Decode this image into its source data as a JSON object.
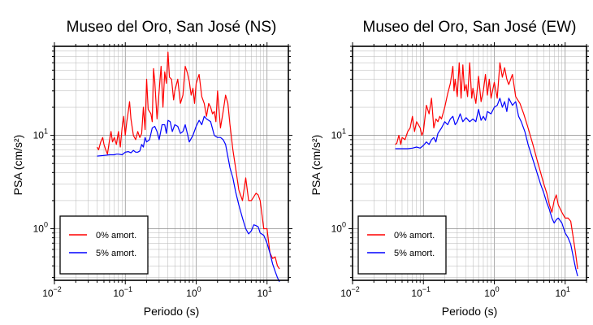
{
  "chart_data": [
    {
      "type": "line",
      "title": "Museo del Oro, San José (NS)",
      "xlabel": "Periodo (s)",
      "ylabel": "PSA (cm/s²)",
      "xscale": "log",
      "yscale": "log",
      "xlim": [
        0.01,
        20
      ],
      "ylim": [
        0.28,
        90
      ],
      "xticks": [
        {
          "base": "10",
          "exp": "−2",
          "value": 0.01
        },
        {
          "base": "10",
          "exp": "−1",
          "value": 0.1
        },
        {
          "base": "10",
          "exp": "0",
          "value": 1
        },
        {
          "base": "10",
          "exp": "1",
          "value": 10
        }
      ],
      "yticks": [
        {
          "base": "10",
          "exp": "0",
          "value": 1
        },
        {
          "base": "10",
          "exp": "1",
          "value": 10
        }
      ],
      "grid": true,
      "legend_position": "bottom-left",
      "series": [
        {
          "name": "0% amort.",
          "color": "#ff0000",
          "x": [
            0.04,
            0.042,
            0.045,
            0.048,
            0.05,
            0.053,
            0.056,
            0.06,
            0.063,
            0.066,
            0.07,
            0.075,
            0.08,
            0.085,
            0.09,
            0.095,
            0.1,
            0.105,
            0.11,
            0.115,
            0.12,
            0.13,
            0.14,
            0.15,
            0.16,
            0.17,
            0.18,
            0.19,
            0.2,
            0.21,
            0.22,
            0.23,
            0.24,
            0.25,
            0.26,
            0.28,
            0.3,
            0.32,
            0.34,
            0.36,
            0.38,
            0.4,
            0.42,
            0.45,
            0.48,
            0.5,
            0.55,
            0.6,
            0.65,
            0.7,
            0.75,
            0.8,
            0.85,
            0.9,
            0.95,
            1.0,
            1.1,
            1.2,
            1.3,
            1.4,
            1.5,
            1.6,
            1.7,
            1.8,
            1.9,
            2.0,
            2.2,
            2.4,
            2.6,
            2.8,
            3.0,
            3.3,
            3.6,
            4.0,
            4.5,
            5.0,
            5.5,
            6.0,
            6.5,
            7.0,
            7.5,
            8.0,
            9.0,
            10.0,
            11.0,
            12.0,
            13.0,
            14.0,
            15.0
          ],
          "y": [
            7.5,
            7.0,
            8.5,
            9.5,
            8.0,
            7.0,
            6.3,
            9.0,
            11.0,
            8.5,
            9.5,
            8.0,
            11.0,
            7.5,
            12.0,
            16.0,
            10.0,
            14.0,
            18.0,
            23.0,
            15.0,
            10.0,
            9.0,
            11.0,
            9.5,
            10.5,
            20.0,
            11.5,
            40.0,
            19.0,
            18.0,
            17.0,
            14.0,
            52.0,
            38.0,
            15.0,
            30.0,
            55.0,
            20.0,
            48.0,
            36.0,
            78.0,
            42.0,
            40.0,
            24.0,
            30.0,
            40.0,
            22.0,
            27.0,
            55.0,
            47.0,
            38.0,
            27.0,
            32.0,
            22.0,
            36.0,
            45.0,
            26.0,
            22.0,
            16.0,
            22.0,
            20.0,
            17.0,
            18.0,
            14.0,
            30.0,
            12.0,
            18.0,
            27.0,
            22.0,
            13.0,
            7.0,
            4.5,
            2.6,
            2.0,
            3.5,
            2.0,
            2.0,
            2.2,
            2.4,
            2.3,
            2.0,
            1.0,
            1.0,
            0.55,
            0.48,
            0.5,
            0.4,
            0.37
          ]
        },
        {
          "name": "5% amort.",
          "color": "#0000ff",
          "x": [
            0.04,
            0.05,
            0.06,
            0.07,
            0.075,
            0.08,
            0.09,
            0.1,
            0.11,
            0.12,
            0.13,
            0.14,
            0.15,
            0.16,
            0.17,
            0.18,
            0.19,
            0.2,
            0.22,
            0.24,
            0.26,
            0.28,
            0.3,
            0.33,
            0.36,
            0.38,
            0.4,
            0.43,
            0.46,
            0.5,
            0.55,
            0.6,
            0.65,
            0.7,
            0.75,
            0.8,
            0.9,
            1.0,
            1.1,
            1.2,
            1.3,
            1.4,
            1.5,
            1.6,
            1.8,
            2.0,
            2.2,
            2.4,
            2.6,
            3.0,
            3.3,
            3.6,
            4.0,
            4.5,
            5.0,
            5.5,
            6.0,
            6.5,
            7.0,
            7.5,
            8.0,
            9.0,
            10.0,
            11.0,
            12.0,
            13.0,
            14.0,
            15.0
          ],
          "y": [
            6.0,
            6.1,
            6.2,
            6.2,
            6.3,
            6.3,
            6.2,
            6.6,
            6.7,
            6.5,
            6.9,
            6.6,
            6.6,
            6.8,
            8.0,
            7.5,
            9.5,
            8.5,
            9.0,
            12.0,
            12.5,
            11.0,
            9.0,
            13.0,
            13.0,
            10.5,
            14.5,
            14.0,
            11.0,
            13.0,
            12.5,
            10.5,
            11.0,
            13.0,
            10.5,
            8.5,
            10.0,
            12.5,
            14.5,
            13.0,
            16.0,
            15.0,
            14.5,
            14.0,
            10.0,
            9.5,
            9.5,
            9.0,
            8.0,
            4.5,
            3.5,
            2.5,
            1.8,
            1.3,
            1.0,
            0.88,
            0.95,
            1.1,
            1.08,
            1.05,
            0.9,
            0.85,
            0.7,
            0.55,
            0.42,
            0.35,
            0.3,
            0.27
          ]
        }
      ]
    },
    {
      "type": "line",
      "title": "Museo del Oro, San José (EW)",
      "xlabel": "Periodo (s)",
      "ylabel": "PSA (cm/s²)",
      "xscale": "log",
      "yscale": "log",
      "xlim": [
        0.01,
        20
      ],
      "ylim": [
        0.28,
        90
      ],
      "xticks": [
        {
          "base": "10",
          "exp": "−2",
          "value": 0.01
        },
        {
          "base": "10",
          "exp": "−1",
          "value": 0.1
        },
        {
          "base": "10",
          "exp": "0",
          "value": 1
        },
        {
          "base": "10",
          "exp": "1",
          "value": 10
        }
      ],
      "yticks": [
        {
          "base": "10",
          "exp": "0",
          "value": 1
        },
        {
          "base": "10",
          "exp": "1",
          "value": 10
        }
      ],
      "grid": true,
      "legend_position": "bottom-left",
      "series": [
        {
          "name": "0% amort.",
          "color": "#ff0000",
          "x": [
            0.04,
            0.042,
            0.045,
            0.048,
            0.05,
            0.055,
            0.06,
            0.065,
            0.07,
            0.075,
            0.08,
            0.085,
            0.09,
            0.095,
            0.1,
            0.11,
            0.12,
            0.13,
            0.14,
            0.15,
            0.16,
            0.17,
            0.18,
            0.2,
            0.22,
            0.24,
            0.26,
            0.27,
            0.28,
            0.3,
            0.32,
            0.34,
            0.36,
            0.38,
            0.4,
            0.42,
            0.45,
            0.48,
            0.5,
            0.55,
            0.6,
            0.65,
            0.7,
            0.75,
            0.8,
            0.85,
            0.9,
            1.0,
            1.1,
            1.2,
            1.3,
            1.4,
            1.5,
            1.6,
            1.8,
            2.0,
            2.3,
            2.6,
            3.0,
            3.5,
            4.0,
            4.5,
            5.0,
            5.5,
            6.0,
            6.5,
            7.0,
            7.5,
            8.0,
            9.0,
            10.0,
            11.0,
            12.0,
            13.0,
            14.0,
            15.0
          ],
          "y": [
            8.0,
            8.2,
            10.0,
            8.0,
            9.5,
            9.0,
            11.0,
            12.0,
            16.0,
            11.0,
            14.0,
            13.0,
            12.0,
            10.0,
            11.0,
            21.0,
            17.0,
            25.0,
            12.0,
            15.0,
            14.0,
            16.0,
            15.0,
            20.0,
            28.0,
            36.0,
            55.0,
            30.0,
            40.0,
            26.0,
            60.0,
            25.0,
            57.0,
            30.0,
            35.0,
            26.0,
            60.0,
            25.0,
            32.0,
            22.0,
            43.0,
            23.0,
            30.0,
            45.0,
            27.0,
            40.0,
            25.0,
            37.0,
            25.0,
            60.0,
            42.0,
            53.0,
            40.0,
            35.0,
            45.0,
            26.0,
            22.0,
            17.0,
            12.0,
            8.0,
            5.5,
            4.0,
            3.0,
            2.4,
            1.8,
            1.5,
            2.0,
            2.3,
            1.8,
            1.5,
            1.3,
            1.3,
            1.2,
            0.8,
            0.55,
            0.37
          ]
        },
        {
          "name": "5% amort.",
          "color": "#0000ff",
          "x": [
            0.04,
            0.05,
            0.06,
            0.07,
            0.08,
            0.09,
            0.1,
            0.11,
            0.12,
            0.13,
            0.14,
            0.15,
            0.16,
            0.18,
            0.2,
            0.22,
            0.24,
            0.26,
            0.28,
            0.3,
            0.33,
            0.36,
            0.4,
            0.45,
            0.5,
            0.55,
            0.6,
            0.65,
            0.7,
            0.75,
            0.8,
            0.9,
            1.0,
            1.1,
            1.2,
            1.3,
            1.4,
            1.5,
            1.6,
            1.8,
            2.0,
            2.2,
            2.4,
            2.7,
            3.0,
            3.5,
            4.0,
            4.5,
            5.0,
            5.5,
            6.0,
            6.5,
            7.0,
            7.5,
            8.0,
            9.0,
            10.0,
            11.0,
            12.0,
            13.0,
            14.0,
            15.0
          ],
          "y": [
            7.2,
            7.2,
            7.2,
            7.3,
            7.5,
            7.3,
            7.8,
            8.5,
            8.0,
            9.0,
            9.5,
            8.5,
            10.5,
            12.0,
            14.0,
            13.0,
            15.0,
            16.0,
            13.0,
            14.0,
            17.0,
            14.0,
            15.5,
            14.0,
            15.0,
            14.0,
            19.0,
            14.5,
            16.0,
            14.5,
            18.0,
            17.0,
            20.0,
            21.0,
            25.0,
            20.0,
            23.0,
            18.0,
            25.0,
            21.0,
            23.0,
            16.0,
            14.0,
            11.0,
            8.0,
            5.5,
            4.0,
            3.0,
            2.4,
            1.9,
            1.6,
            1.3,
            1.15,
            1.25,
            1.3,
            1.15,
            0.9,
            0.8,
            0.68,
            0.5,
            0.38,
            0.31
          ]
        }
      ]
    }
  ]
}
